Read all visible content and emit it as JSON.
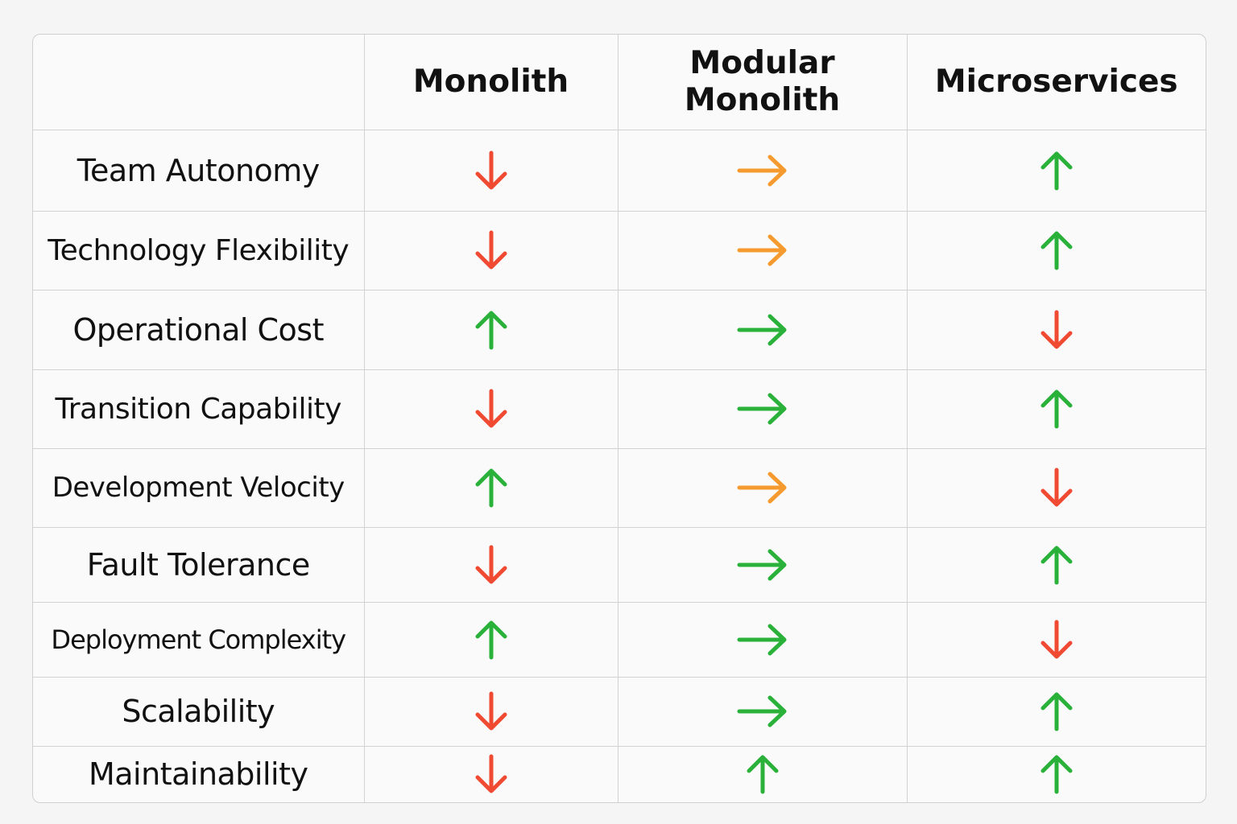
{
  "table": {
    "columns": [
      "Monolith",
      "Modular\nMonolith",
      "Microservices"
    ],
    "rows": [
      "Team Autonomy",
      "Technology Flexibility",
      "Operational Cost",
      "Transition Capability",
      "Development Velocity",
      "Fault Tolerance",
      "Deployment Complexity",
      "Scalability",
      "Maintainability"
    ]
  }
}
